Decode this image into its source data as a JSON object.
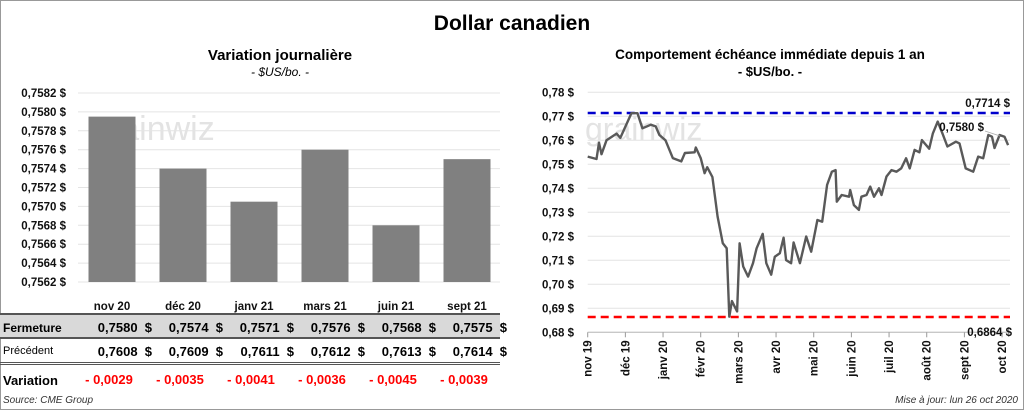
{
  "title": "Dollar canadien",
  "left": {
    "title": "Variation  journalière",
    "subtitle": "- $US/bo. -",
    "source": "Source: CME Group",
    "table": {
      "row_labels": [
        "Fermeture",
        "Précédent",
        "Variation"
      ],
      "fermeture": [
        "0,7580  $",
        "0,7574  $",
        "0,7571  $",
        "0,7576  $",
        "0,7568  $",
        "0,7575  $"
      ],
      "precedent": [
        "0,7608  $",
        "0,7609  $",
        "0,7611  $",
        "0,7612  $",
        "0,7613  $",
        "0,7614  $"
      ],
      "variation": [
        "- 0,0029",
        "- 0,0035",
        "- 0,0041",
        "- 0,0036",
        "- 0,0045",
        "- 0,0039"
      ]
    }
  },
  "right": {
    "title": "Comportement échéance immédiate depuis 1 an",
    "subtitle": "- $US/bo. -",
    "updated": "Mise à jour: lun 26 oct 2020"
  },
  "watermark": "grainwiz",
  "colors": {
    "bar": "#808080",
    "line": "#595959",
    "high": "#0000cc",
    "low": "#ff0000",
    "variation": "#ff0000",
    "table_header_bg": "#d9d9d9"
  },
  "chart_data": [
    {
      "type": "bar",
      "title": "Variation  journalière",
      "subtitle": "- $US/bo. -",
      "categories": [
        "nov 20",
        "déc 20",
        "janv 21",
        "mars 21",
        "juin 21",
        "sept 21"
      ],
      "values": [
        0.75795,
        0.7574,
        0.75705,
        0.7576,
        0.7568,
        0.7575
      ],
      "ylim": [
        0.7562,
        0.7582
      ],
      "yticks": [
        "0,7562 $",
        "0,7564 $",
        "0,7566 $",
        "0,7568 $",
        "0,7570 $",
        "0,7572 $",
        "0,7574 $",
        "0,7576 $",
        "0,7578 $",
        "0,7580 $",
        "0,7582 $"
      ],
      "grid": true
    },
    {
      "type": "line",
      "title": "Comportement échéance immédiate depuis 1 an",
      "subtitle": "- $US/bo. -",
      "ylim": [
        0.68,
        0.78
      ],
      "yticks": [
        "0,68 $",
        "0,69 $",
        "0,70 $",
        "0,71 $",
        "0,72 $",
        "0,73 $",
        "0,74 $",
        "0,75 $",
        "0,76 $",
        "0,77 $",
        "0,78 $"
      ],
      "xticks": [
        "nov 19",
        "déc 19",
        "janv 20",
        "févr 20",
        "mars 20",
        "avr 20",
        "mai 20",
        "juin 20",
        "juil 20",
        "août 20",
        "sept 20",
        "oct 20"
      ],
      "grid": true,
      "high": {
        "value": 0.7714,
        "label": "0,7714 $"
      },
      "low": {
        "value": 0.6864,
        "label": "0,6864 $"
      },
      "last": {
        "value": 0.758,
        "label": "0,7580 $"
      },
      "points": [
        [
          "2019-11-01",
          0.7532
        ],
        [
          "2019-11-08",
          0.7522
        ],
        [
          "2019-11-10",
          0.759
        ],
        [
          "2019-11-12",
          0.7542
        ],
        [
          "2019-11-16",
          0.76
        ],
        [
          "2019-11-24",
          0.7628
        ],
        [
          "2019-11-27",
          0.761
        ],
        [
          "2019-12-01",
          0.7657
        ],
        [
          "2019-12-06",
          0.7713
        ],
        [
          "2019-12-11",
          0.7713
        ],
        [
          "2019-12-15",
          0.765
        ],
        [
          "2019-12-22",
          0.7665
        ],
        [
          "2019-12-26",
          0.7658
        ],
        [
          "2019-12-29",
          0.7622
        ],
        [
          "2020-01-03",
          0.76
        ],
        [
          "2020-01-09",
          0.7526
        ],
        [
          "2020-01-16",
          0.7512
        ],
        [
          "2020-01-19",
          0.7547
        ],
        [
          "2020-01-27",
          0.755
        ],
        [
          "2020-01-28",
          0.757
        ],
        [
          "2020-02-01",
          0.7526
        ],
        [
          "2020-02-04",
          0.7463
        ],
        [
          "2020-02-06",
          0.7488
        ],
        [
          "2020-02-10",
          0.7447
        ],
        [
          "2020-02-14",
          0.7282
        ],
        [
          "2020-02-18",
          0.7171
        ],
        [
          "2020-02-21",
          0.715
        ],
        [
          "2020-02-23",
          0.6865
        ],
        [
          "2020-02-25",
          0.693
        ],
        [
          "2020-02-29",
          0.6887
        ],
        [
          "2020-03-02",
          0.7171
        ],
        [
          "2020-03-05",
          0.7074
        ],
        [
          "2020-03-09",
          0.7032
        ],
        [
          "2020-03-13",
          0.7088
        ],
        [
          "2020-03-16",
          0.715
        ],
        [
          "2020-03-21",
          0.721
        ],
        [
          "2020-03-24",
          0.7088
        ],
        [
          "2020-03-28",
          0.704
        ],
        [
          "2020-03-31",
          0.7115
        ],
        [
          "2020-04-04",
          0.7129
        ],
        [
          "2020-04-07",
          0.7194
        ],
        [
          "2020-04-09",
          0.7101
        ],
        [
          "2020-04-13",
          0.7088
        ],
        [
          "2020-04-15",
          0.7174
        ],
        [
          "2020-04-20",
          0.7088
        ],
        [
          "2020-04-25",
          0.7199
        ],
        [
          "2020-04-29",
          0.7136
        ],
        [
          "2020-05-04",
          0.7268
        ],
        [
          "2020-05-08",
          0.7261
        ],
        [
          "2020-05-12",
          0.7414
        ],
        [
          "2020-05-16",
          0.7469
        ],
        [
          "2020-05-19",
          0.7476
        ],
        [
          "2020-05-20",
          0.7344
        ],
        [
          "2020-05-24",
          0.7372
        ],
        [
          "2020-05-30",
          0.7365
        ],
        [
          "2020-05-31",
          0.7393
        ],
        [
          "2020-06-03",
          0.733
        ],
        [
          "2020-06-07",
          0.731
        ],
        [
          "2020-06-09",
          0.7365
        ],
        [
          "2020-06-13",
          0.7372
        ],
        [
          "2020-06-16",
          0.7407
        ],
        [
          "2020-06-19",
          0.7365
        ],
        [
          "2020-06-23",
          0.74
        ],
        [
          "2020-06-25",
          0.7372
        ],
        [
          "2020-06-29",
          0.7449
        ],
        [
          "2020-07-03",
          0.7476
        ],
        [
          "2020-07-07",
          0.7469
        ],
        [
          "2020-07-11",
          0.7483
        ],
        [
          "2020-07-15",
          0.7525
        ],
        [
          "2020-07-18",
          0.7483
        ],
        [
          "2020-07-22",
          0.756
        ],
        [
          "2020-07-26",
          0.755
        ],
        [
          "2020-07-28",
          0.7601
        ],
        [
          "2020-08-03",
          0.7565
        ],
        [
          "2020-08-06",
          0.7628
        ],
        [
          "2020-08-10",
          0.7678
        ],
        [
          "2020-08-14",
          0.7628
        ],
        [
          "2020-08-18",
          0.7574
        ],
        [
          "2020-08-25",
          0.7594
        ],
        [
          "2020-08-28",
          0.7587
        ],
        [
          "2020-09-02",
          0.7483
        ],
        [
          "2020-09-08",
          0.7469
        ],
        [
          "2020-09-12",
          0.7532
        ],
        [
          "2020-09-16",
          0.7525
        ],
        [
          "2020-09-20",
          0.7622
        ],
        [
          "2020-09-23",
          0.7615
        ],
        [
          "2020-09-25",
          0.7568
        ],
        [
          "2020-09-29",
          0.7622
        ],
        [
          "2020-10-03",
          0.7615
        ],
        [
          "2020-10-06",
          0.758
        ]
      ]
    }
  ]
}
